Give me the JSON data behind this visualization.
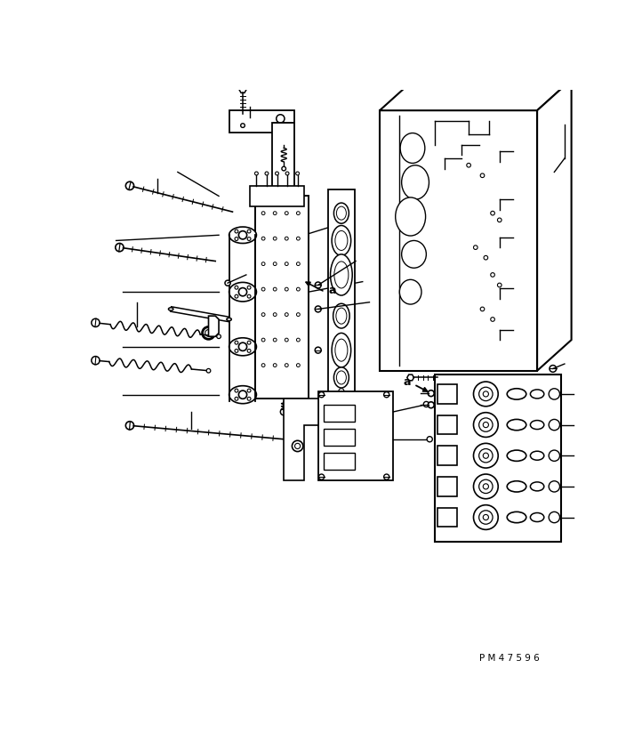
{
  "bg_color": "#ffffff",
  "line_color": "#000000",
  "figure_width": 7.22,
  "figure_height": 8.42,
  "dpi": 100,
  "watermark_text": "P M 4 7 5 9 6"
}
